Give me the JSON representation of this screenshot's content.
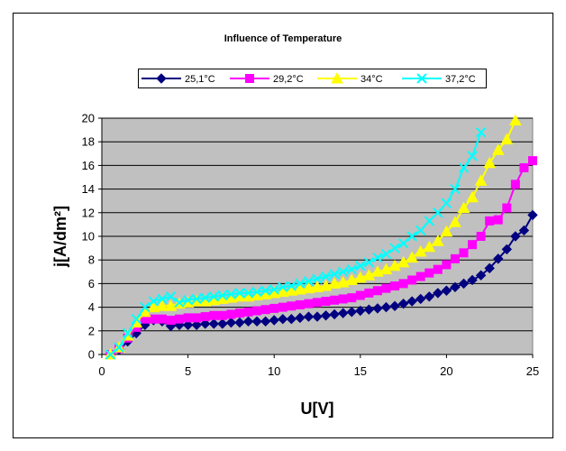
{
  "chart_data": {
    "type": "line",
    "title": "Influence of Temperature",
    "xlabel": "U[V]",
    "ylabel": "j[A/dm²]",
    "xlim": [
      0,
      25
    ],
    "ylim": [
      0,
      20
    ],
    "xticks": [
      0,
      5,
      10,
      15,
      20,
      25
    ],
    "yticks": [
      0,
      2,
      4,
      6,
      8,
      10,
      12,
      14,
      16,
      18,
      20
    ],
    "grid": "horizontal",
    "plot_background": "#c0c0c0",
    "legend_position": "top",
    "series": [
      {
        "name": "25,1°C",
        "color": "#000080",
        "marker": "diamond",
        "x": [
          0.5,
          1,
          1.5,
          2,
          2.5,
          3,
          3.5,
          4,
          4.5,
          5,
          5.5,
          6,
          6.5,
          7,
          7.5,
          8,
          8.5,
          9,
          9.5,
          10,
          10.5,
          11,
          11.5,
          12,
          12.5,
          13,
          13.5,
          14,
          14.5,
          15,
          15.5,
          16,
          16.5,
          17,
          17.5,
          18,
          18.5,
          19,
          19.5,
          20,
          20.5,
          21,
          21.5,
          22,
          22.5,
          23,
          23.5,
          24,
          24.5,
          25
        ],
        "y": [
          0,
          0.4,
          1.1,
          1.8,
          2.5,
          2.9,
          2.8,
          2.4,
          2.5,
          2.5,
          2.5,
          2.6,
          2.6,
          2.6,
          2.7,
          2.7,
          2.8,
          2.8,
          2.8,
          2.9,
          3.0,
          3.0,
          3.1,
          3.2,
          3.2,
          3.3,
          3.4,
          3.5,
          3.6,
          3.7,
          3.8,
          3.9,
          4.0,
          4.1,
          4.3,
          4.5,
          4.7,
          4.9,
          5.2,
          5.4,
          5.7,
          6.0,
          6.3,
          6.7,
          7.3,
          8.1,
          8.9,
          10.0,
          10.5,
          11.8
        ]
      },
      {
        "name": "29,2°C",
        "color": "#ff00ff",
        "marker": "square",
        "x": [
          0.5,
          1,
          1.5,
          2,
          2.5,
          3,
          3.5,
          4,
          4.5,
          5,
          5.5,
          6,
          6.5,
          7,
          7.5,
          8,
          8.5,
          9,
          9.5,
          10,
          10.5,
          11,
          11.5,
          12,
          12.5,
          13,
          13.5,
          14,
          14.5,
          15,
          15.5,
          16,
          16.5,
          17,
          17.5,
          18,
          18.5,
          19,
          19.5,
          20,
          20.5,
          21,
          21.5,
          22,
          22.5,
          23,
          23.5,
          24,
          24.5,
          25
        ],
        "y": [
          0,
          0.5,
          1.4,
          2.3,
          3.0,
          3.0,
          3.0,
          2.9,
          3.0,
          3.1,
          3.1,
          3.2,
          3.3,
          3.3,
          3.4,
          3.5,
          3.6,
          3.7,
          3.8,
          3.9,
          4.0,
          4.1,
          4.2,
          4.3,
          4.4,
          4.5,
          4.6,
          4.7,
          4.8,
          5.0,
          5.2,
          5.4,
          5.6,
          5.8,
          6.0,
          6.3,
          6.6,
          6.9,
          7.2,
          7.6,
          8.1,
          8.6,
          9.3,
          10.0,
          11.3,
          11.4,
          12.4,
          14.4,
          15.8,
          16.4
        ]
      },
      {
        "name": "34°C",
        "color": "#ffff00",
        "marker": "triangle",
        "x": [
          0.5,
          1,
          1.5,
          2,
          2.5,
          3,
          3.5,
          4,
          4.5,
          5,
          5.5,
          6,
          6.5,
          7,
          7.5,
          8,
          8.5,
          9,
          9.5,
          10,
          10.5,
          11,
          11.5,
          12,
          12.5,
          13,
          13.5,
          14,
          14.5,
          15,
          15.5,
          16,
          16.5,
          17,
          17.5,
          18,
          18.5,
          19,
          19.5,
          20,
          20.5,
          21,
          21.5,
          22,
          22.5,
          23,
          23.5,
          24
        ],
        "y": [
          0,
          0.6,
          1.6,
          2.7,
          3.6,
          4.0,
          4.1,
          4.1,
          4.3,
          4.4,
          4.5,
          4.5,
          4.6,
          4.7,
          4.8,
          4.9,
          4.9,
          5.0,
          5.1,
          5.2,
          5.3,
          5.4,
          5.5,
          5.6,
          5.7,
          5.8,
          6.0,
          6.1,
          6.3,
          6.5,
          6.7,
          7.0,
          7.2,
          7.5,
          7.8,
          8.2,
          8.7,
          9.1,
          9.6,
          10.4,
          11.2,
          12.4,
          13.3,
          14.7,
          16.2,
          17.3,
          18.2,
          19.8
        ]
      },
      {
        "name": "37,2°C",
        "color": "#00ffff",
        "marker": "x",
        "x": [
          0.5,
          1,
          1.5,
          2,
          2.5,
          3,
          3.5,
          4,
          4.5,
          5,
          5.5,
          6,
          6.5,
          7,
          7.5,
          8,
          8.5,
          9,
          9.5,
          10,
          10.5,
          11,
          11.5,
          12,
          12.5,
          13,
          13.5,
          14,
          14.5,
          15,
          15.5,
          16,
          16.5,
          17,
          17.5,
          18,
          18.5,
          19,
          19.5,
          20,
          20.5,
          21,
          21.5,
          22
        ],
        "y": [
          0,
          0.6,
          1.8,
          3.0,
          4.0,
          4.5,
          4.7,
          4.9,
          4.4,
          4.6,
          4.7,
          4.8,
          4.9,
          5.0,
          5.1,
          5.2,
          5.2,
          5.3,
          5.4,
          5.5,
          5.7,
          5.8,
          6.0,
          6.2,
          6.4,
          6.6,
          6.8,
          7.0,
          7.2,
          7.5,
          7.8,
          8.2,
          8.5,
          9.0,
          9.4,
          10.0,
          10.5,
          11.3,
          12.0,
          12.8,
          14.0,
          15.8,
          16.8,
          18.8
        ]
      }
    ]
  }
}
